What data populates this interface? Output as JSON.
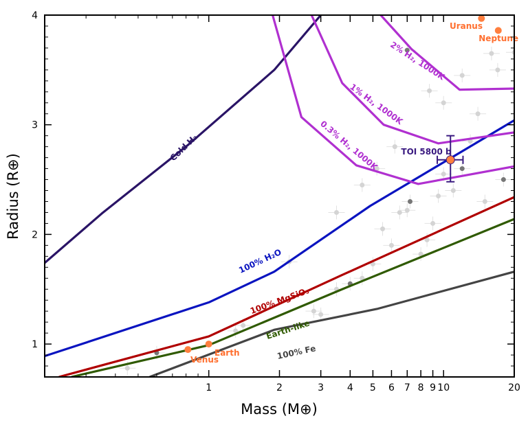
{
  "chart_data": {
    "type": "line",
    "xlabel": "Mass (M⊕)",
    "ylabel": "Radius (R⊕)",
    "xscale": "log",
    "xlim": [
      0.2,
      20
    ],
    "ylim": [
      0.7,
      4
    ],
    "xticks": [
      1,
      2,
      3,
      4,
      5,
      6,
      7,
      8,
      9,
      10,
      20
    ],
    "xtick_labels": [
      "1",
      "2",
      "3",
      "4",
      "5",
      "6",
      "7",
      "8",
      "9",
      "10",
      "20"
    ],
    "yticks": [
      1,
      2,
      3,
      4
    ],
    "ytick_labels": [
      "1",
      "2",
      "3",
      "4"
    ],
    "grid": false,
    "series": [
      {
        "name": "Cold H₂",
        "color": "#2a1466",
        "points": [
          [
            0.2,
            1.74
          ],
          [
            0.35,
            2.19
          ],
          [
            0.82,
            2.82
          ],
          [
            1.9,
            3.5
          ],
          [
            3.0,
            4.0
          ]
        ]
      },
      {
        "name": "100% H₂O",
        "color": "#0a14c0",
        "points": [
          [
            0.2,
            0.89
          ],
          [
            1,
            1.38
          ],
          [
            1.9,
            1.66
          ],
          [
            4.87,
            2.26
          ],
          [
            20,
            3.04
          ]
        ]
      },
      {
        "name": "100% MgSiO₃",
        "color": "#b00000",
        "points": [
          [
            0.23,
            0.7
          ],
          [
            1,
            1.07
          ],
          [
            3.7,
            1.63
          ],
          [
            20,
            2.34
          ]
        ]
      },
      {
        "name": "Earth-like",
        "color": "#2f5a00",
        "points": [
          [
            0.26,
            0.7
          ],
          [
            1,
            0.99
          ],
          [
            3.7,
            1.5
          ],
          [
            20,
            2.14
          ]
        ]
      },
      {
        "name": "100% Fe",
        "color": "#444444",
        "points": [
          [
            0.56,
            0.7
          ],
          [
            1.9,
            1.13
          ],
          [
            5.2,
            1.32
          ],
          [
            20,
            1.66
          ]
        ]
      },
      {
        "name": "0.3% H₂, 1000K",
        "color": "#b030d0",
        "points": [
          [
            1.87,
            4.0
          ],
          [
            2.48,
            3.07
          ],
          [
            4.25,
            2.63
          ],
          [
            7.8,
            2.46
          ],
          [
            20,
            2.62
          ]
        ]
      },
      {
        "name": "1% H₂, 1000K",
        "color": "#b030d0",
        "points": [
          [
            2.74,
            4.0
          ],
          [
            3.7,
            3.38
          ],
          [
            5.56,
            3.0
          ],
          [
            9.5,
            2.83
          ],
          [
            20,
            2.93
          ]
        ]
      },
      {
        "name": "2% H₂, 1000K",
        "color": "#b030d0",
        "points": [
          [
            5.4,
            4.0
          ],
          [
            7.3,
            3.69
          ],
          [
            11.7,
            3.32
          ],
          [
            20,
            3.33
          ]
        ]
      }
    ],
    "solar_system": [
      {
        "name": "Earth",
        "mass": 1.0,
        "radius": 1.0
      },
      {
        "name": "Venus",
        "mass": 0.815,
        "radius": 0.95
      },
      {
        "name": "Uranus",
        "mass": 14.5,
        "radius": 3.97
      },
      {
        "name": "Neptune",
        "mass": 17.1,
        "radius": 3.86
      }
    ],
    "target": {
      "name": "TOI 5800 b",
      "mass": 10.7,
      "radius": 2.68,
      "mass_err": [
        9.4,
        12.1
      ],
      "radius_err": [
        2.48,
        2.9
      ],
      "color": "#ff7f3f"
    },
    "background_planets": [
      [
        0.6,
        0.92
      ],
      [
        0.45,
        0.78
      ],
      [
        1.3,
        1.12
      ],
      [
        1.4,
        1.17
      ],
      [
        2.8,
        1.3
      ],
      [
        3.0,
        1.27
      ],
      [
        3.5,
        1.5
      ],
      [
        4.0,
        1.55
      ],
      [
        4.5,
        1.6
      ],
      [
        5.0,
        1.73
      ],
      [
        5.5,
        2.05
      ],
      [
        6.0,
        1.9
      ],
      [
        6.5,
        2.2
      ],
      [
        7.0,
        2.22
      ],
      [
        7.2,
        2.3
      ],
      [
        8.0,
        1.82
      ],
      [
        8.5,
        1.95
      ],
      [
        9.0,
        2.1
      ],
      [
        9.5,
        2.35
      ],
      [
        10,
        2.55
      ],
      [
        11,
        2.4
      ],
      [
        12,
        2.6
      ],
      [
        13,
        2.85
      ],
      [
        14,
        3.1
      ],
      [
        15,
        2.3
      ],
      [
        16,
        3.65
      ],
      [
        17,
        3.5
      ],
      [
        8.7,
        3.31
      ],
      [
        7.0,
        3.68
      ],
      [
        20,
        3.66
      ],
      [
        4.5,
        2.45
      ],
      [
        5.2,
        2.6
      ],
      [
        6.2,
        2.8
      ],
      [
        3.5,
        2.2
      ],
      [
        2.2,
        1.75
      ],
      [
        18,
        2.5
      ],
      [
        10,
        3.2
      ],
      [
        12,
        3.45
      ]
    ]
  }
}
